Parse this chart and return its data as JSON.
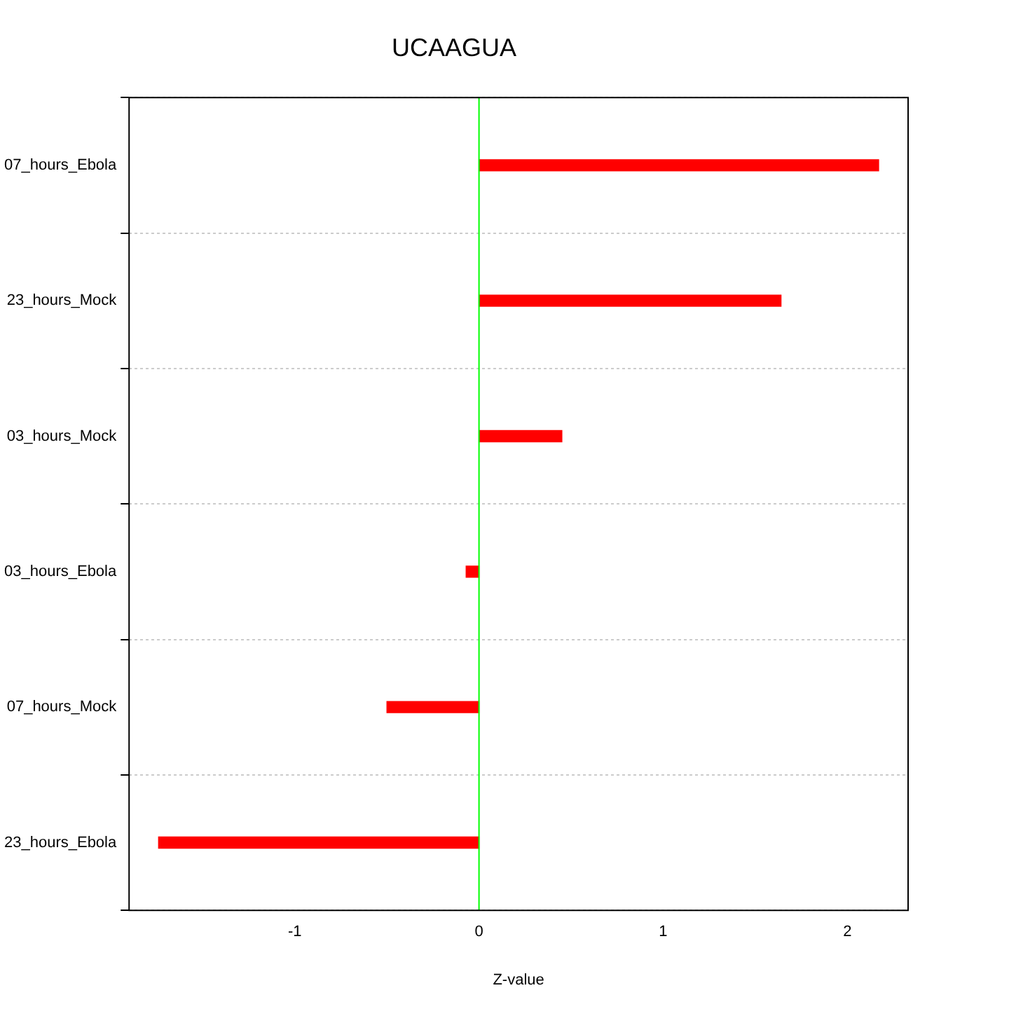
{
  "chart_data": {
    "type": "bar",
    "orientation": "horizontal",
    "title": "UCAAGUA",
    "xlabel": "Z-value",
    "categories": [
      "07_hours_Ebola",
      "23_hours_Mock",
      "03_hours_Mock",
      "03_hours_Ebola",
      "07_hours_Mock",
      "23_hours_Ebola"
    ],
    "values": [
      2.17,
      1.64,
      0.45,
      -0.07,
      -0.5,
      -1.74
    ],
    "color": "#ff0000",
    "xlim": [
      -1.9,
      2.33
    ],
    "xticks": [
      -1,
      0,
      1,
      2
    ],
    "grid": "y",
    "legend": false,
    "ref_lines": [
      {
        "axis": "x",
        "value": 0,
        "color": "#00ff00"
      }
    ]
  }
}
